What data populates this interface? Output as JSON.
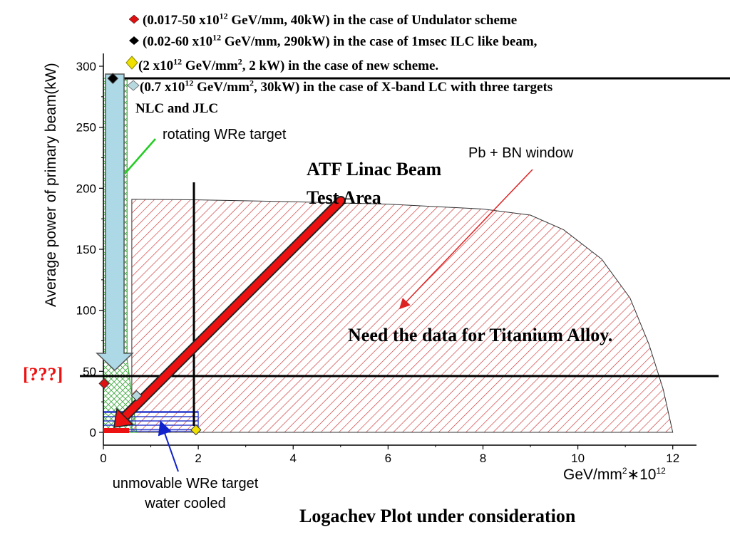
{
  "chart_data": {
    "type": "area",
    "xlabel": "GeV/mm²∗10¹²",
    "ylabel": "Average power of primary beam(kW)",
    "xlim": [
      0,
      12.5
    ],
    "ylim": [
      0,
      300
    ],
    "x_ticks": [
      "0",
      "2",
      "4",
      "6",
      "8",
      "10",
      "12"
    ],
    "y_ticks": [
      "0",
      "50",
      "100",
      "150",
      "200",
      "250",
      "300"
    ],
    "y_tick_50_override": "[???]",
    "regions": [
      {
        "name": "Pb + BN window",
        "points": [
          [
            0.6,
            0
          ],
          [
            0.6,
            191
          ],
          [
            2,
            190.5
          ],
          [
            4,
            189
          ],
          [
            6,
            187
          ],
          [
            8,
            183
          ],
          [
            9,
            178
          ],
          [
            9.7,
            166
          ],
          [
            10.5,
            142
          ],
          [
            11.1,
            110
          ],
          [
            11.5,
            72
          ],
          [
            11.8,
            35
          ],
          [
            12,
            0
          ]
        ],
        "color": "#cc2222",
        "hatch": "red-diagonal"
      },
      {
        "name": "rotating WRe target",
        "points": [
          [
            0,
            0
          ],
          [
            0,
            290
          ],
          [
            0.5,
            290
          ],
          [
            0.5,
            60
          ],
          [
            0.7,
            0
          ]
        ],
        "color": "#44aa44",
        "hatch": "green-crosshatch"
      },
      {
        "name": "unmovable WRe target water cooled",
        "points": [
          [
            0,
            1
          ],
          [
            0,
            17
          ],
          [
            2,
            17
          ],
          [
            2,
            1
          ]
        ],
        "color": "#2233cc",
        "hatch": "blue-horizontal"
      }
    ],
    "points": [
      {
        "x": 0.017,
        "y": 40,
        "label": "Undulator scheme",
        "marker": "diamond",
        "color": "#dd1111"
      },
      {
        "x": 0.2,
        "y": 290,
        "label": "1msec ILC like beam",
        "marker": "diamond",
        "color": "#000000"
      },
      {
        "x": 1.95,
        "y": 2,
        "label": "new scheme",
        "marker": "diamond",
        "color": "#f0e000"
      },
      {
        "x": 0.7,
        "y": 30,
        "label": "X-band LC with three targets NLC and JLC",
        "marker": "diamond",
        "color": "#b8d8e0"
      }
    ]
  },
  "legend": [
    {
      "prefix": "(0.017-50 x10",
      "sup": "12",
      "suffix": " GeV/mm, 40kW) in the case of Undulator scheme",
      "color": "#dd1111",
      "icon": "diamond-icon"
    },
    {
      "prefix": "(0.02-60 x10",
      "sup": "12",
      "suffix": " GeV/mm, 290kW) in the case of 1msec ILC like beam,",
      "color": "#000000",
      "icon": "diamond-icon"
    },
    {
      "prefix": "(2 x10",
      "sup": "12",
      "mid": " GeV/mm",
      "sup2": "2",
      "suffix": ", 2 kW) in the case of new scheme.",
      "color": "#f0e000",
      "icon": "diamond-icon"
    },
    {
      "prefix": "(0.7 x10",
      "sup": "12",
      "mid": " GeV/mm",
      "sup2": "2",
      "suffix": ", 30kW) in the case of X-band LC with three targets",
      "color": "#b8d8e0",
      "icon": "diamond-icon"
    }
  ],
  "legend_continuation": "NLC and JLC",
  "annotations": {
    "rotating": "rotating WRe target",
    "pbbn": "Pb + BN window",
    "unmovable_line1": "unmovable WRe target",
    "unmovable_line2": "water cooled",
    "atf_line1": "ATF Linac Beam",
    "atf_line2": "Test Area",
    "need_data": "Need the data for Titanium Alloy.",
    "footer": "Logachev Plot under consideration",
    "unknown_marker": "[???]"
  },
  "colors": {
    "accent_red": "#ee1111",
    "arrow_blue": "#add8e6",
    "pointer_green": "#22cc22",
    "pointer_blue": "#1122cc"
  }
}
